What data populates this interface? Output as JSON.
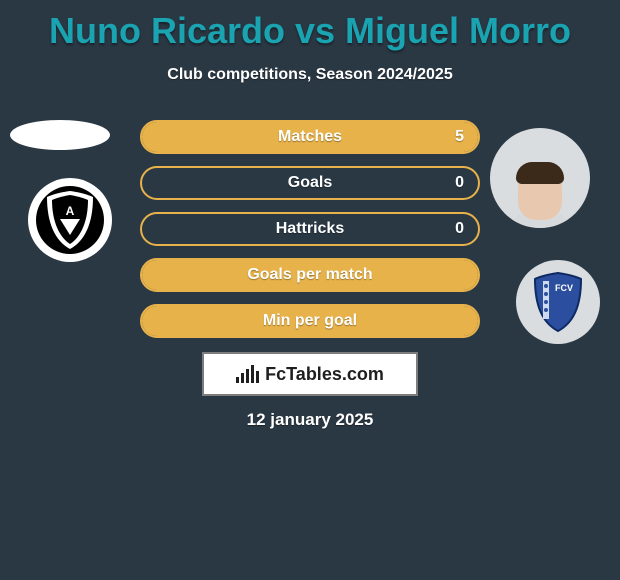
{
  "header": {
    "title": "Nuno Ricardo vs Miguel Morro",
    "title_color": "#1aa3b0",
    "subtitle": "Club competitions, Season 2024/2025"
  },
  "palette": {
    "bar_border": "#e7b24a",
    "bar_fill": "#e7b24a",
    "text": "#ffffff",
    "bg": "#2a3844"
  },
  "stats": [
    {
      "label": "Matches",
      "value": "5",
      "fill_pct": 100
    },
    {
      "label": "Goals",
      "value": "0",
      "fill_pct": 0
    },
    {
      "label": "Hattricks",
      "value": "0",
      "fill_pct": 0
    },
    {
      "label": "Goals per match",
      "value": "",
      "fill_pct": 100
    },
    {
      "label": "Min per goal",
      "value": "",
      "fill_pct": 100
    }
  ],
  "left": {
    "player_avatar_style": "ellipse-placeholder",
    "club": {
      "name": "Académico Viseu",
      "badge_bg": "#ffffff",
      "badge_shield": "#000000"
    }
  },
  "right": {
    "player_avatar_style": "face",
    "club": {
      "name": "FC Vizela",
      "badge_bg": "#d9dde0",
      "badge_shield": "#2b4f9e"
    }
  },
  "footer": {
    "source_label": "FcTables.com",
    "date": "12 january 2025"
  }
}
